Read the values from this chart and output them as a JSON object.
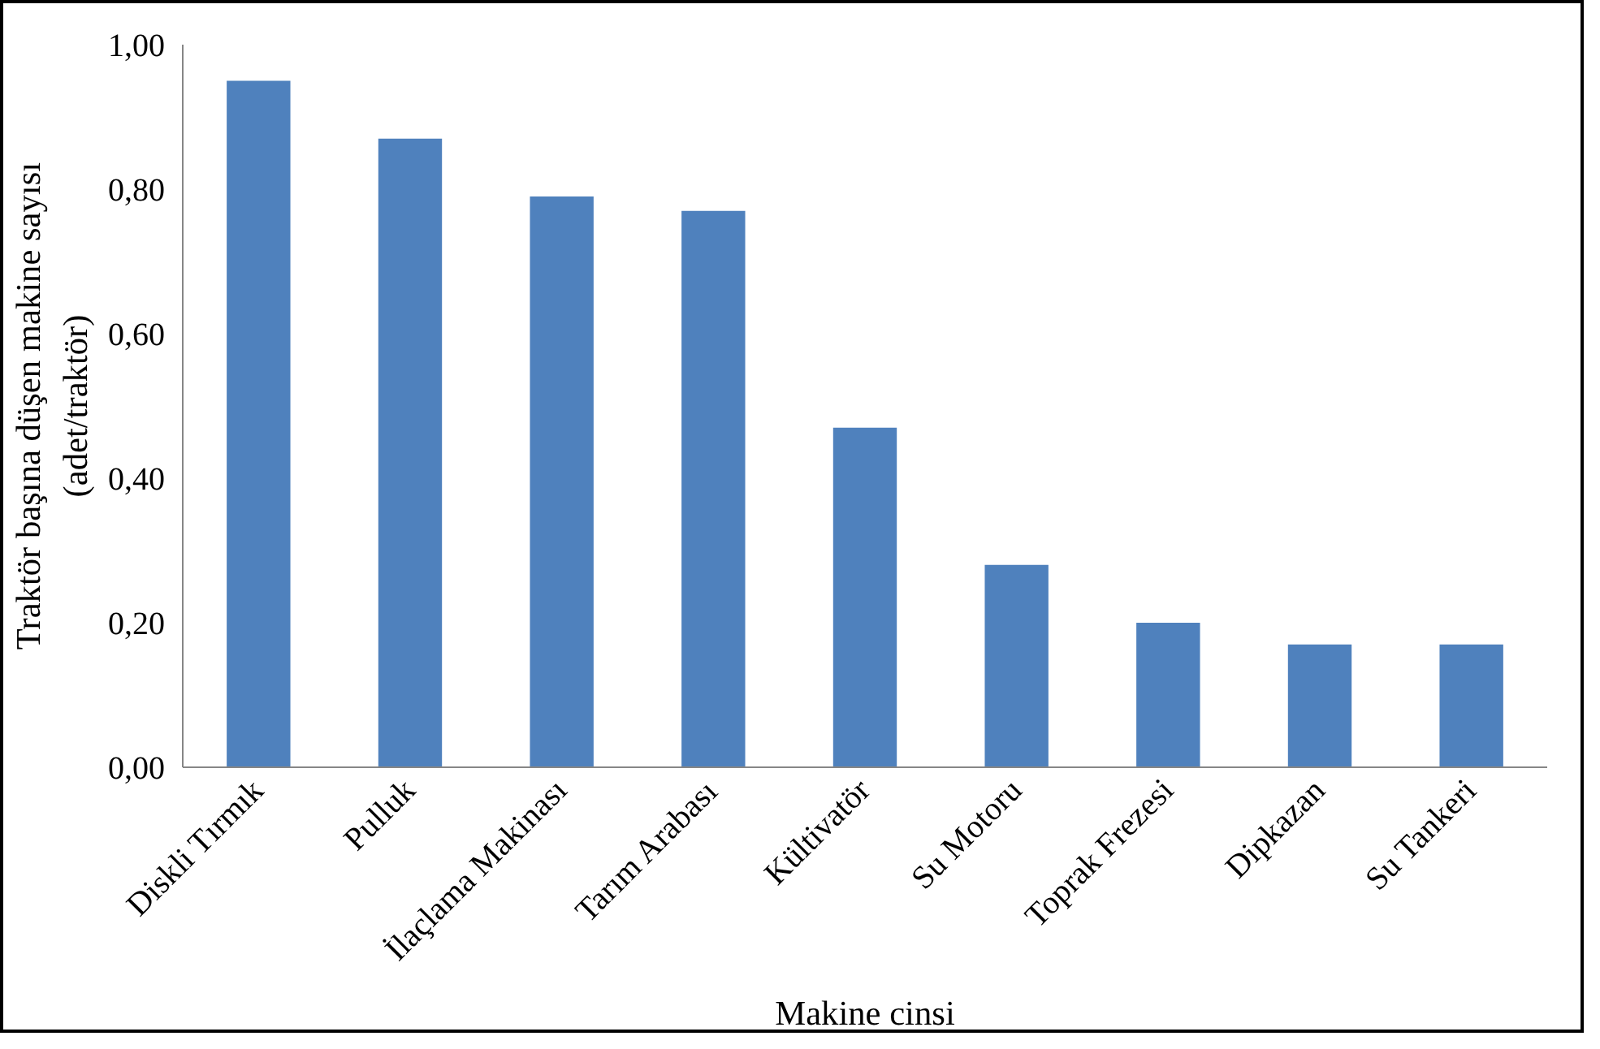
{
  "chart_data": {
    "type": "bar",
    "xlabel": "Makine cinsi",
    "ylabel": "Traktör başına düşen makine sayısı\n(adet/traktör)",
    "categories": [
      "Diskli Tırmık",
      "Pulluk",
      "İlaçlama Makinası",
      "Tarım Arabası",
      "Kültivatör",
      "Su Motoru",
      "Toprak Frezesi",
      "Dipkazan",
      "Su Tankeri"
    ],
    "values": [
      0.95,
      0.87,
      0.79,
      0.77,
      0.47,
      0.28,
      0.2,
      0.17,
      0.17
    ],
    "color": "#4f81bd",
    "ylim": [
      0,
      1
    ],
    "yticks": [
      {
        "value": 0,
        "label": "0,00"
      },
      {
        "value": 0.2,
        "label": "0,20"
      },
      {
        "value": 0.4,
        "label": "0,40"
      },
      {
        "value": 0.6,
        "label": "0,60"
      },
      {
        "value": 0.8,
        "label": "0,80"
      },
      {
        "value": 1,
        "label": "1,00"
      }
    ],
    "grid": false
  }
}
